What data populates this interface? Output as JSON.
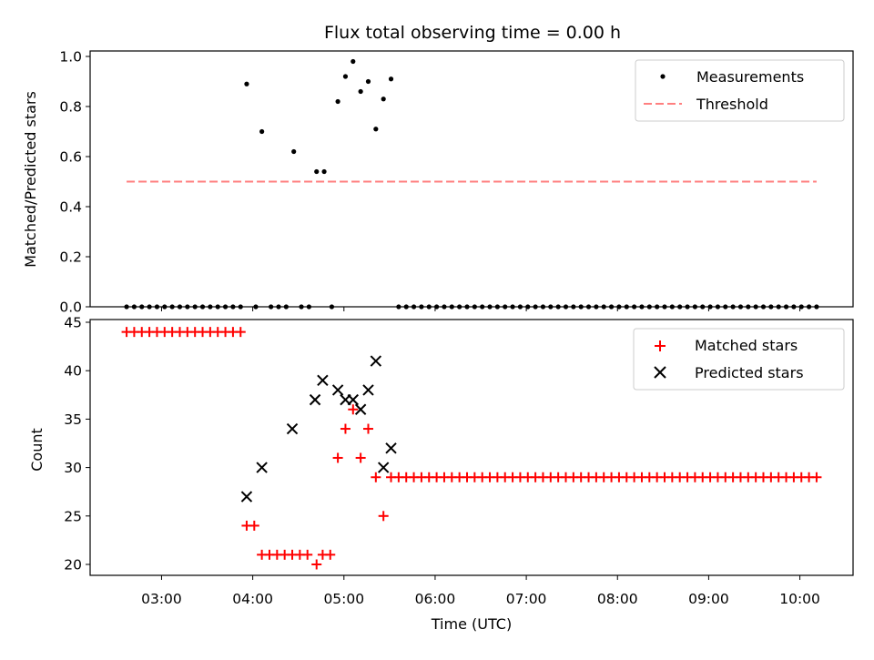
{
  "chart_data": [
    {
      "type": "scatter",
      "title": "Flux total observing time = 0.00 h",
      "ylabel": "Matched/Predicted stars",
      "ylim": [
        0.0,
        1.0
      ],
      "yticks": [
        0.0,
        0.2,
        0.4,
        0.6,
        0.8,
        1.0
      ],
      "ytick_labels": [
        "0.0",
        "0.2",
        "0.4",
        "0.6",
        "0.8",
        "1.0"
      ],
      "xlim": [
        "02:13",
        "10:35"
      ],
      "legend_position": "top-right",
      "series": [
        {
          "name": "Measurements",
          "kind": "scatter",
          "color": "#000000",
          "points": [
            [
              "02:37",
              0.0
            ],
            [
              "02:42",
              0.0
            ],
            [
              "02:47",
              0.0
            ],
            [
              "02:52",
              0.0
            ],
            [
              "02:57",
              0.0
            ],
            [
              "03:02",
              0.0
            ],
            [
              "03:07",
              0.0
            ],
            [
              "03:12",
              0.0
            ],
            [
              "03:17",
              0.0
            ],
            [
              "03:22",
              0.0
            ],
            [
              "03:27",
              0.0
            ],
            [
              "03:32",
              0.0
            ],
            [
              "03:37",
              0.0
            ],
            [
              "03:42",
              0.0
            ],
            [
              "03:47",
              0.0
            ],
            [
              "03:52",
              0.0
            ],
            [
              "03:56",
              0.89
            ],
            [
              "04:02",
              0.0
            ],
            [
              "04:06",
              0.7
            ],
            [
              "04:12",
              0.0
            ],
            [
              "04:17",
              0.0
            ],
            [
              "04:22",
              0.0
            ],
            [
              "04:27",
              0.62
            ],
            [
              "04:32",
              0.0
            ],
            [
              "04:37",
              0.0
            ],
            [
              "04:42",
              0.54
            ],
            [
              "04:47",
              0.54
            ],
            [
              "04:52",
              0.0
            ],
            [
              "04:56",
              0.82
            ],
            [
              "05:01",
              0.92
            ],
            [
              "05:06",
              0.98
            ],
            [
              "05:11",
              0.86
            ],
            [
              "05:16",
              0.9
            ],
            [
              "05:21",
              0.71
            ],
            [
              "05:26",
              0.83
            ],
            [
              "05:31",
              0.91
            ],
            [
              "05:36",
              0.0
            ],
            [
              "05:41",
              0.0
            ],
            [
              "05:46",
              0.0
            ],
            [
              "05:51",
              0.0
            ],
            [
              "05:56",
              0.0
            ],
            [
              "06:01",
              0.0
            ],
            [
              "06:06",
              0.0
            ],
            [
              "06:11",
              0.0
            ],
            [
              "06:16",
              0.0
            ],
            [
              "06:21",
              0.0
            ],
            [
              "06:26",
              0.0
            ],
            [
              "06:31",
              0.0
            ],
            [
              "06:36",
              0.0
            ],
            [
              "06:41",
              0.0
            ],
            [
              "06:46",
              0.0
            ],
            [
              "06:51",
              0.0
            ],
            [
              "06:56",
              0.0
            ],
            [
              "07:01",
              0.0
            ],
            [
              "07:06",
              0.0
            ],
            [
              "07:11",
              0.0
            ],
            [
              "07:16",
              0.0
            ],
            [
              "07:21",
              0.0
            ],
            [
              "07:26",
              0.0
            ],
            [
              "07:31",
              0.0
            ],
            [
              "07:36",
              0.0
            ],
            [
              "07:41",
              0.0
            ],
            [
              "07:46",
              0.0
            ],
            [
              "07:51",
              0.0
            ],
            [
              "07:56",
              0.0
            ],
            [
              "08:01",
              0.0
            ],
            [
              "08:06",
              0.0
            ],
            [
              "08:11",
              0.0
            ],
            [
              "08:16",
              0.0
            ],
            [
              "08:21",
              0.0
            ],
            [
              "08:26",
              0.0
            ],
            [
              "08:31",
              0.0
            ],
            [
              "08:36",
              0.0
            ],
            [
              "08:41",
              0.0
            ],
            [
              "08:46",
              0.0
            ],
            [
              "08:51",
              0.0
            ],
            [
              "08:56",
              0.0
            ],
            [
              "09:01",
              0.0
            ],
            [
              "09:06",
              0.0
            ],
            [
              "09:11",
              0.0
            ],
            [
              "09:16",
              0.0
            ],
            [
              "09:21",
              0.0
            ],
            [
              "09:26",
              0.0
            ],
            [
              "09:31",
              0.0
            ],
            [
              "09:36",
              0.0
            ],
            [
              "09:41",
              0.0
            ],
            [
              "09:46",
              0.0
            ],
            [
              "09:51",
              0.0
            ],
            [
              "09:56",
              0.0
            ],
            [
              "10:01",
              0.0
            ],
            [
              "10:06",
              0.0
            ],
            [
              "10:11",
              0.0
            ]
          ]
        },
        {
          "name": "Threshold",
          "kind": "dashed-line",
          "color": "#ff7f7f",
          "points": [
            [
              "02:37",
              0.5
            ],
            [
              "10:11",
              0.5
            ]
          ]
        }
      ]
    },
    {
      "type": "scatter",
      "xlabel": "Time (UTC)",
      "ylabel": "Count",
      "ylim": [
        19,
        45
      ],
      "yticks": [
        20,
        25,
        30,
        35,
        40,
        45
      ],
      "ytick_labels": [
        "20",
        "25",
        "30",
        "35",
        "40",
        "45"
      ],
      "xlim": [
        "02:13",
        "10:35"
      ],
      "xticks": [
        "03:00",
        "04:00",
        "05:00",
        "06:00",
        "07:00",
        "08:00",
        "09:00",
        "10:00"
      ],
      "xtick_labels": [
        "03:00",
        "04:00",
        "05:00",
        "06:00",
        "07:00",
        "08:00",
        "09:00",
        "10:00"
      ],
      "legend_position": "top-right",
      "series": [
        {
          "name": "Matched stars",
          "kind": "plus-marker",
          "color": "#ff0000",
          "points": [
            [
              "02:37",
              44
            ],
            [
              "02:42",
              44
            ],
            [
              "02:47",
              44
            ],
            [
              "02:52",
              44
            ],
            [
              "02:57",
              44
            ],
            [
              "03:02",
              44
            ],
            [
              "03:07",
              44
            ],
            [
              "03:12",
              44
            ],
            [
              "03:17",
              44
            ],
            [
              "03:22",
              44
            ],
            [
              "03:27",
              44
            ],
            [
              "03:32",
              44
            ],
            [
              "03:37",
              44
            ],
            [
              "03:42",
              44
            ],
            [
              "03:47",
              44
            ],
            [
              "03:52",
              44
            ],
            [
              "03:56",
              24
            ],
            [
              "04:01",
              24
            ],
            [
              "04:06",
              21
            ],
            [
              "04:11",
              21
            ],
            [
              "04:16",
              21
            ],
            [
              "04:21",
              21
            ],
            [
              "04:26",
              21
            ],
            [
              "04:31",
              21
            ],
            [
              "04:36",
              21
            ],
            [
              "04:42",
              20
            ],
            [
              "04:46",
              21
            ],
            [
              "04:51",
              21
            ],
            [
              "04:56",
              31
            ],
            [
              "05:01",
              34
            ],
            [
              "05:06",
              36
            ],
            [
              "05:11",
              31
            ],
            [
              "05:16",
              34
            ],
            [
              "05:21",
              29
            ],
            [
              "05:26",
              25
            ],
            [
              "05:31",
              29
            ],
            [
              "05:36",
              29
            ],
            [
              "05:41",
              29
            ],
            [
              "05:46",
              29
            ],
            [
              "05:51",
              29
            ],
            [
              "05:56",
              29
            ],
            [
              "06:01",
              29
            ],
            [
              "06:06",
              29
            ],
            [
              "06:11",
              29
            ],
            [
              "06:16",
              29
            ],
            [
              "06:21",
              29
            ],
            [
              "06:26",
              29
            ],
            [
              "06:31",
              29
            ],
            [
              "06:36",
              29
            ],
            [
              "06:41",
              29
            ],
            [
              "06:46",
              29
            ],
            [
              "06:51",
              29
            ],
            [
              "06:56",
              29
            ],
            [
              "07:01",
              29
            ],
            [
              "07:06",
              29
            ],
            [
              "07:11",
              29
            ],
            [
              "07:16",
              29
            ],
            [
              "07:21",
              29
            ],
            [
              "07:26",
              29
            ],
            [
              "07:31",
              29
            ],
            [
              "07:36",
              29
            ],
            [
              "07:41",
              29
            ],
            [
              "07:46",
              29
            ],
            [
              "07:51",
              29
            ],
            [
              "07:56",
              29
            ],
            [
              "08:01",
              29
            ],
            [
              "08:06",
              29
            ],
            [
              "08:11",
              29
            ],
            [
              "08:16",
              29
            ],
            [
              "08:21",
              29
            ],
            [
              "08:26",
              29
            ],
            [
              "08:31",
              29
            ],
            [
              "08:36",
              29
            ],
            [
              "08:41",
              29
            ],
            [
              "08:46",
              29
            ],
            [
              "08:51",
              29
            ],
            [
              "08:56",
              29
            ],
            [
              "09:01",
              29
            ],
            [
              "09:06",
              29
            ],
            [
              "09:11",
              29
            ],
            [
              "09:16",
              29
            ],
            [
              "09:21",
              29
            ],
            [
              "09:26",
              29
            ],
            [
              "09:31",
              29
            ],
            [
              "09:36",
              29
            ],
            [
              "09:41",
              29
            ],
            [
              "09:46",
              29
            ],
            [
              "09:51",
              29
            ],
            [
              "09:56",
              29
            ],
            [
              "10:01",
              29
            ],
            [
              "10:06",
              29
            ],
            [
              "10:11",
              29
            ]
          ]
        },
        {
          "name": "Predicted stars",
          "kind": "x-marker",
          "color": "#000000",
          "points": [
            [
              "03:56",
              27
            ],
            [
              "04:06",
              30
            ],
            [
              "04:26",
              34
            ],
            [
              "04:41",
              37
            ],
            [
              "04:46",
              39
            ],
            [
              "04:56",
              38
            ],
            [
              "05:01",
              37
            ],
            [
              "05:06",
              37
            ],
            [
              "05:11",
              36
            ],
            [
              "05:16",
              38
            ],
            [
              "05:21",
              41
            ],
            [
              "05:26",
              30
            ],
            [
              "05:31",
              32
            ]
          ]
        }
      ]
    }
  ]
}
